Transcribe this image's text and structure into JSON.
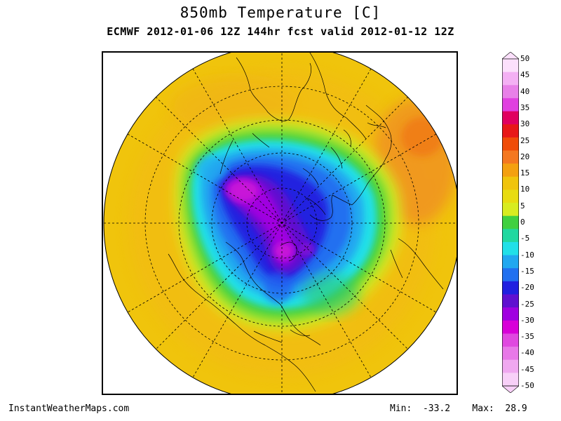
{
  "title": "850mb Temperature [C]",
  "subtitle": "ECMWF 2012-01-06 12Z 144hr fcst valid 2012-01-12 12Z",
  "colorbar": {
    "labels": [
      "50",
      "45",
      "40",
      "35",
      "30",
      "25",
      "20",
      "15",
      "10",
      "5",
      "0",
      "-5",
      "-10",
      "-15",
      "-20",
      "-25",
      "-30",
      "-35",
      "-40",
      "-45",
      "-50"
    ],
    "colors": [
      "#fce0fc",
      "#f4b0f4",
      "#e880e8",
      "#e040e0",
      "#e00060",
      "#e81818",
      "#f04c08",
      "#f47820",
      "#f4a010",
      "#f0c40c",
      "#e8dc10",
      "#d8ec20",
      "#40d040",
      "#20d8a0",
      "#20e0e8",
      "#20a8f0",
      "#2070f0",
      "#2020e0",
      "#6010d0",
      "#a000e0",
      "#d800d8",
      "#e048e0",
      "#e878e8",
      "#f0a8f0",
      "#f8d0f8"
    ]
  },
  "footer": {
    "credit": "InstantWeatherMaps.com",
    "min_label": "Min:",
    "min_value": "-33.2",
    "max_label": "Max:",
    "max_value": "28.9"
  }
}
